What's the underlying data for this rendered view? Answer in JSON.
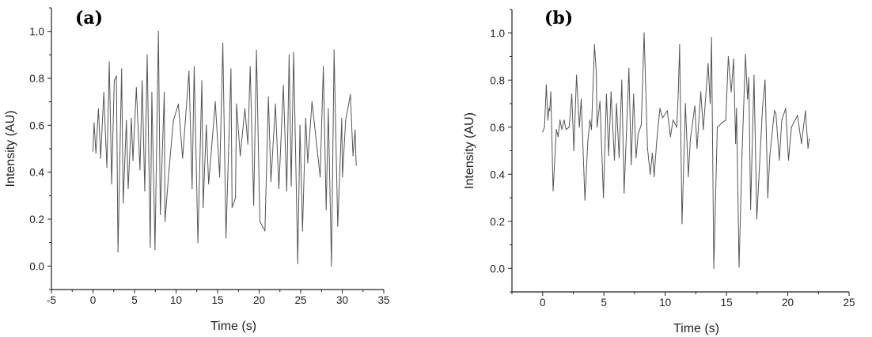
{
  "chart_data": [
    {
      "type": "line",
      "panel_label": "(a)",
      "xlabel": "Time (s)",
      "ylabel": "Intensity (AU)",
      "xlim": [
        -5,
        35
      ],
      "ylim": [
        -0.1,
        1.1
      ],
      "xticks": [
        -5,
        0,
        5,
        10,
        15,
        20,
        25,
        30,
        35
      ],
      "xtick_labels": [
        "-5",
        "0",
        "5",
        "10",
        "15",
        "20",
        "25",
        "30",
        "35"
      ],
      "yticks": [
        0.0,
        0.2,
        0.4,
        0.6,
        0.8,
        1.0
      ],
      "ytick_labels": [
        "0.0",
        "0.2",
        "0.4",
        "0.6",
        "0.8",
        "1.0"
      ],
      "grid": false,
      "line_color": "#555555",
      "points": [
        [
          0,
          0.49
        ],
        [
          0.13,
          0.61
        ],
        [
          0.35,
          0.48
        ],
        [
          0.66,
          0.67
        ],
        [
          0.92,
          0.46
        ],
        [
          1.3,
          0.74
        ],
        [
          1.55,
          0.52
        ],
        [
          1.68,
          0.42
        ],
        [
          1.96,
          0.87
        ],
        [
          2.25,
          0.35
        ],
        [
          2.56,
          0.79
        ],
        [
          2.82,
          0.81
        ],
        [
          3.01,
          0.06
        ],
        [
          3.45,
          0.84
        ],
        [
          3.64,
          0.27
        ],
        [
          4.02,
          0.62
        ],
        [
          4.24,
          0.33
        ],
        [
          4.62,
          0.63
        ],
        [
          4.81,
          0.45
        ],
        [
          5.22,
          0.76
        ],
        [
          5.66,
          0.41
        ],
        [
          5.92,
          0.79
        ],
        [
          6.23,
          0.32
        ],
        [
          6.52,
          0.9
        ],
        [
          6.9,
          0.08
        ],
        [
          7.09,
          0.74
        ],
        [
          7.47,
          0.07
        ],
        [
          7.88,
          1.0
        ],
        [
          8.1,
          0.22
        ],
        [
          8.58,
          0.74
        ],
        [
          8.67,
          0.19
        ],
        [
          9.15,
          0.41
        ],
        [
          9.68,
          0.62
        ],
        [
          10.28,
          0.69
        ],
        [
          10.79,
          0.46
        ],
        [
          11.55,
          0.83
        ],
        [
          11.93,
          0.33
        ],
        [
          12.18,
          0.85
        ],
        [
          12.63,
          0.1
        ],
        [
          13.1,
          0.79
        ],
        [
          13.26,
          0.25
        ],
        [
          13.64,
          0.6
        ],
        [
          13.92,
          0.35
        ],
        [
          14.72,
          0.7
        ],
        [
          15.25,
          0.38
        ],
        [
          15.63,
          0.95
        ],
        [
          16.01,
          0.12
        ],
        [
          16.61,
          0.84
        ],
        [
          16.74,
          0.25
        ],
        [
          17.15,
          0.29
        ],
        [
          17.28,
          0.69
        ],
        [
          17.72,
          0.47
        ],
        [
          18.29,
          0.67
        ],
        [
          18.64,
          0.52
        ],
        [
          18.92,
          0.85
        ],
        [
          19.34,
          0.26
        ],
        [
          19.68,
          0.92
        ],
        [
          20.09,
          0.19
        ],
        [
          20.7,
          0.15
        ],
        [
          21.11,
          0.72
        ],
        [
          21.42,
          0.36
        ],
        [
          21.96,
          0.69
        ],
        [
          22.37,
          0.33
        ],
        [
          22.91,
          0.77
        ],
        [
          23.32,
          0.32
        ],
        [
          23.61,
          0.9
        ],
        [
          23.86,
          0.34
        ],
        [
          24.15,
          0.91
        ],
        [
          24.65,
          0.01
        ],
        [
          24.91,
          0.6
        ],
        [
          25.22,
          0.15
        ],
        [
          25.6,
          0.63
        ],
        [
          25.85,
          0.44
        ],
        [
          26.36,
          0.7
        ],
        [
          27.34,
          0.38
        ],
        [
          27.72,
          0.85
        ],
        [
          28.07,
          0.24
        ],
        [
          28.32,
          0.67
        ],
        [
          28.7,
          0.0
        ],
        [
          29.02,
          0.92
        ],
        [
          29.46,
          0.17
        ],
        [
          29.94,
          0.63
        ],
        [
          30.03,
          0.38
        ],
        [
          30.41,
          0.62
        ],
        [
          30.98,
          0.73
        ],
        [
          31.3,
          0.47
        ],
        [
          31.55,
          0.58
        ],
        [
          31.68,
          0.43
        ]
      ]
    },
    {
      "type": "line",
      "panel_label": "(b)",
      "xlabel": "Time (s)",
      "ylabel": "Intensity (AU)",
      "xlim": [
        -2.5,
        25
      ],
      "ylim": [
        -0.1,
        1.1
      ],
      "xticks": [
        0,
        5,
        10,
        15,
        20,
        25
      ],
      "xtick_labels": [
        "0",
        "5",
        "10",
        "15",
        "20",
        "25"
      ],
      "yticks": [
        0.0,
        0.2,
        0.4,
        0.6,
        0.8,
        1.0
      ],
      "ytick_labels": [
        "0.0",
        "0.2",
        "0.4",
        "0.6",
        "0.8",
        "1.0"
      ],
      "grid": false,
      "line_color": "#555555",
      "points": [
        [
          0,
          0.58
        ],
        [
          0.15,
          0.6
        ],
        [
          0.3,
          0.78
        ],
        [
          0.43,
          0.63
        ],
        [
          0.52,
          0.68
        ],
        [
          0.58,
          0.67
        ],
        [
          0.67,
          0.75
        ],
        [
          0.86,
          0.33
        ],
        [
          1.12,
          0.59
        ],
        [
          1.27,
          0.56
        ],
        [
          1.42,
          0.63
        ],
        [
          1.57,
          0.59
        ],
        [
          1.76,
          0.63
        ],
        [
          1.91,
          0.59
        ],
        [
          2.17,
          0.6
        ],
        [
          2.38,
          0.74
        ],
        [
          2.55,
          0.5
        ],
        [
          2.77,
          0.82
        ],
        [
          3.0,
          0.6
        ],
        [
          3.15,
          0.72
        ],
        [
          3.45,
          0.29
        ],
        [
          3.69,
          0.54
        ],
        [
          3.86,
          0.63
        ],
        [
          3.99,
          0.59
        ],
        [
          4.23,
          0.95
        ],
        [
          4.38,
          0.83
        ],
        [
          4.44,
          0.6
        ],
        [
          4.68,
          0.71
        ],
        [
          4.96,
          0.3
        ],
        [
          5.21,
          0.74
        ],
        [
          5.39,
          0.48
        ],
        [
          5.58,
          0.75
        ],
        [
          5.86,
          0.46
        ],
        [
          6.03,
          0.7
        ],
        [
          6.24,
          0.47
        ],
        [
          6.46,
          0.8
        ],
        [
          6.65,
          0.32
        ],
        [
          7.04,
          0.85
        ],
        [
          7.23,
          0.44
        ],
        [
          7.42,
          0.74
        ],
        [
          7.62,
          0.47
        ],
        [
          7.79,
          0.57
        ],
        [
          8.05,
          0.61
        ],
        [
          8.28,
          1.0
        ],
        [
          8.56,
          0.51
        ],
        [
          8.78,
          0.4
        ],
        [
          8.95,
          0.49
        ],
        [
          9.1,
          0.39
        ],
        [
          9.31,
          0.54
        ],
        [
          9.57,
          0.68
        ],
        [
          9.79,
          0.64
        ],
        [
          10.17,
          0.67
        ],
        [
          10.43,
          0.56
        ],
        [
          10.64,
          0.63
        ],
        [
          10.94,
          0.6
        ],
        [
          11.07,
          0.75
        ],
        [
          11.18,
          0.95
        ],
        [
          11.37,
          0.19
        ],
        [
          11.65,
          0.7
        ],
        [
          11.89,
          0.39
        ],
        [
          12.06,
          0.55
        ],
        [
          12.42,
          0.69
        ],
        [
          12.6,
          0.51
        ],
        [
          12.9,
          0.75
        ],
        [
          13.11,
          0.59
        ],
        [
          13.5,
          0.87
        ],
        [
          13.67,
          0.7
        ],
        [
          13.78,
          0.98
        ],
        [
          13.97,
          0.0
        ],
        [
          14.25,
          0.6
        ],
        [
          14.68,
          0.62
        ],
        [
          14.94,
          0.63
        ],
        [
          15.15,
          0.9
        ],
        [
          15.39,
          0.75
        ],
        [
          15.58,
          0.89
        ],
        [
          15.75,
          0.53
        ],
        [
          15.82,
          0.68
        ],
        [
          16.03,
          0.005
        ],
        [
          16.27,
          0.49
        ],
        [
          16.55,
          0.91
        ],
        [
          16.72,
          0.72
        ],
        [
          16.82,
          0.81
        ],
        [
          16.97,
          0.25
        ],
        [
          17.25,
          0.82
        ],
        [
          17.47,
          0.21
        ],
        [
          17.94,
          0.68
        ],
        [
          18.15,
          0.8
        ],
        [
          18.37,
          0.3
        ],
        [
          18.54,
          0.48
        ],
        [
          18.91,
          0.67
        ],
        [
          19.03,
          0.66
        ],
        [
          19.31,
          0.46
        ],
        [
          19.51,
          0.63
        ],
        [
          19.83,
          0.68
        ],
        [
          20.06,
          0.46
        ],
        [
          20.3,
          0.6
        ],
        [
          20.79,
          0.65
        ],
        [
          21.12,
          0.53
        ],
        [
          21.44,
          0.67
        ],
        [
          21.65,
          0.51
        ],
        [
          21.76,
          0.55
        ]
      ]
    }
  ]
}
